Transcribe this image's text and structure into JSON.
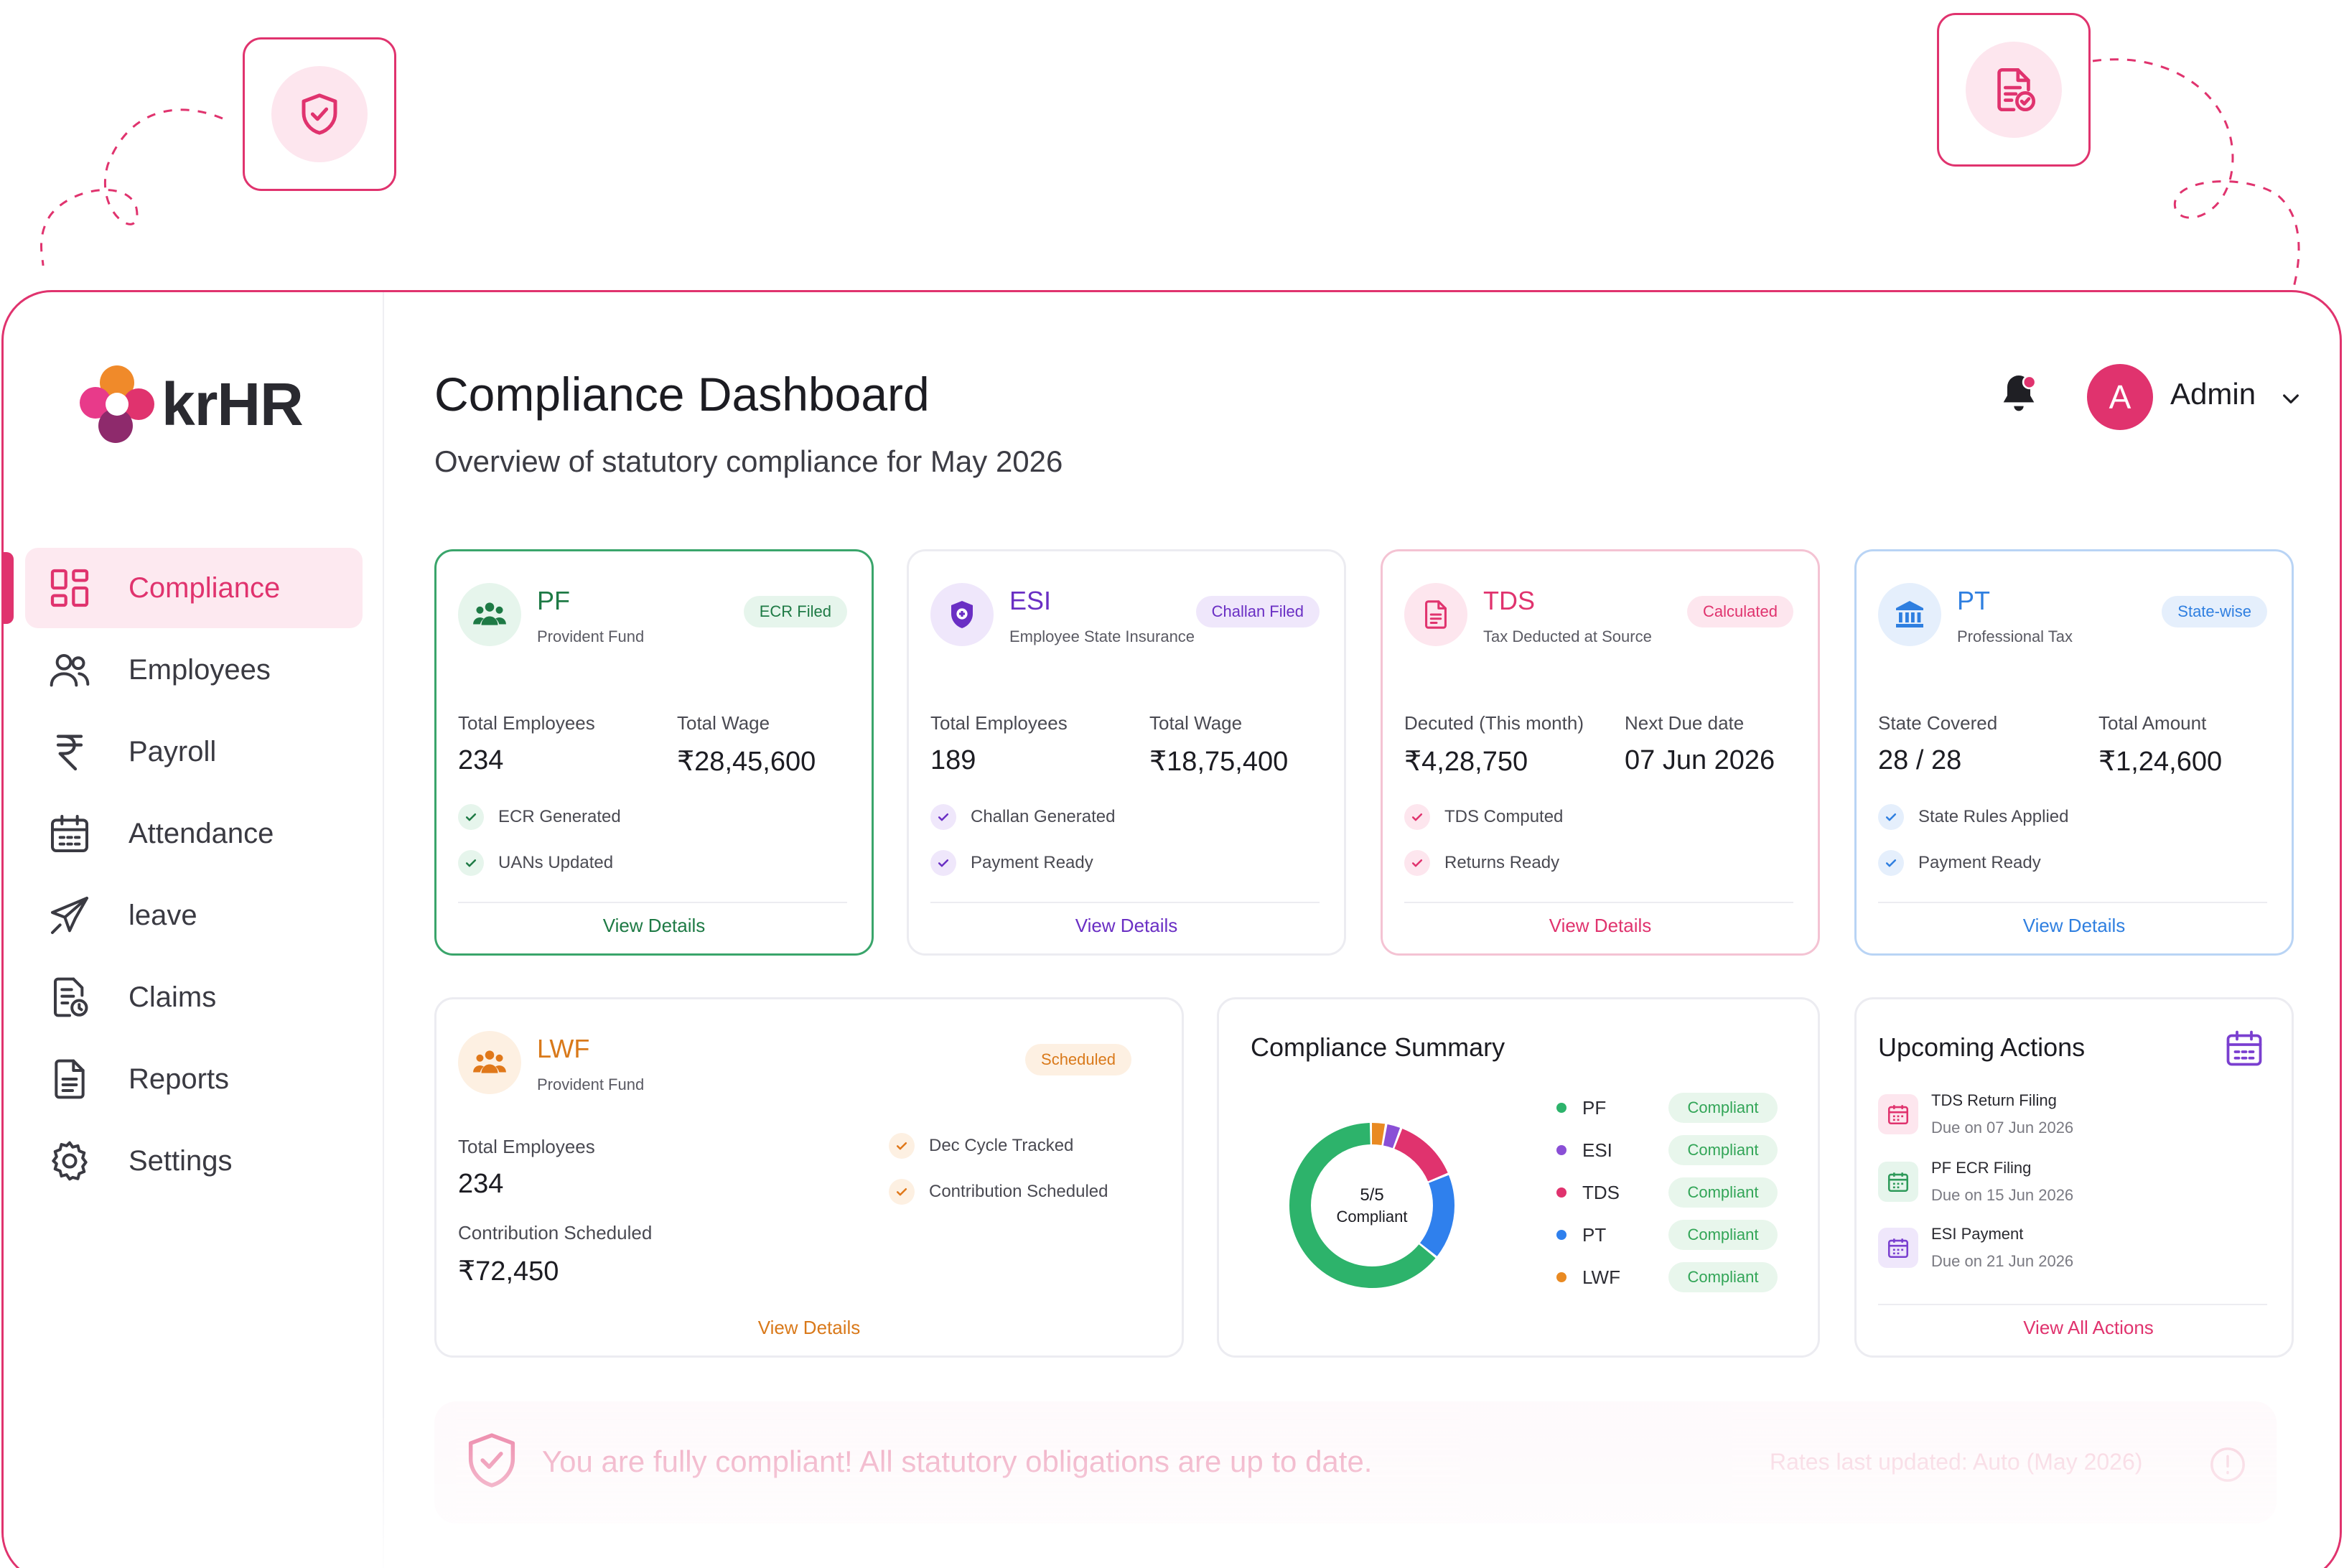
{
  "app": {
    "logo_text": "krHR"
  },
  "colors": {
    "accent": "#e0336e",
    "pf": "#2e9a5a",
    "esi": "#7a3fd0",
    "tds": "#e0336e",
    "pt": "#2f7fe0",
    "lwf": "#e58a1f"
  },
  "sidebar": {
    "items": [
      {
        "label": "Compliance",
        "icon": "grid-icon",
        "active": true
      },
      {
        "label": "Employees",
        "icon": "users-icon"
      },
      {
        "label": "Payroll",
        "icon": "rupee-icon"
      },
      {
        "label": "Attendance",
        "icon": "calendar-icon"
      },
      {
        "label": "leave",
        "icon": "plane-icon"
      },
      {
        "label": "Claims",
        "icon": "receipt-icon"
      },
      {
        "label": "Reports",
        "icon": "document-icon"
      },
      {
        "label": "Settings",
        "icon": "gear-icon"
      }
    ]
  },
  "header": {
    "title": "Compliance Dashboard",
    "subtitle": "Overview of statutory compliance for May 2026",
    "avatar_letter": "A",
    "user_name": "Admin"
  },
  "cards": {
    "pf": {
      "title": "PF",
      "subtitle": "Provident Fund",
      "badge": "ECR Filed",
      "stat1_label": "Total Employees",
      "stat1_value": "234",
      "stat2_label": "Total Wage",
      "stat2_value": "₹28,45,600",
      "check1": "ECR Generated",
      "check2": "UANs Updated",
      "link": "View Details"
    },
    "esi": {
      "title": "ESI",
      "subtitle": "Employee State Insurance",
      "badge": "Challan Filed",
      "stat1_label": "Total Employees",
      "stat1_value": "189",
      "stat2_label": "Total Wage",
      "stat2_value": "₹18,75,400",
      "check1": "Challan Generated",
      "check2": "Payment Ready",
      "link": "View Details"
    },
    "tds": {
      "title": "TDS",
      "subtitle": "Tax Deducted at Source",
      "badge": "Calculated",
      "stat1_label": "Decuted (This month)",
      "stat1_value": "₹4,28,750",
      "stat2_label": "Next Due date",
      "stat2_value": "07 Jun 2026",
      "check1": "TDS Computed",
      "check2": "Returns Ready",
      "link": "View Details"
    },
    "pt": {
      "title": "PT",
      "subtitle": "Professional Tax",
      "badge": "State-wise",
      "stat1_label": "State Covered",
      "stat1_value": "28 / 28",
      "stat2_label": "Total Amount",
      "stat2_value": "₹1,24,600",
      "check1": "State Rules Applied",
      "check2": "Payment Ready",
      "link": "View Details"
    },
    "lwf": {
      "title": "LWF",
      "subtitle": "Provident Fund",
      "badge": "Scheduled",
      "stat1_label": "Total Employees",
      "stat1_value": "234",
      "stat2_label": "Contribution Scheduled",
      "stat2_value": "₹72,450",
      "check1": "Dec Cycle Tracked",
      "check2": "Contribution Scheduled",
      "link": "View Details"
    }
  },
  "summary": {
    "title": "Compliance Summary",
    "center_value": "5/5",
    "center_label": "Compliant",
    "items": [
      {
        "name": "PF",
        "status": "Compliant",
        "color": "#2db36b"
      },
      {
        "name": "ESI",
        "status": "Compliant",
        "color": "#8a4fd6"
      },
      {
        "name": "TDS",
        "status": "Compliant",
        "color": "#e0336e"
      },
      {
        "name": "PT",
        "status": "Compliant",
        "color": "#2f80ed"
      },
      {
        "name": "LWF",
        "status": "Compliant",
        "color": "#e98a22"
      }
    ]
  },
  "upcoming": {
    "title": "Upcoming Actions",
    "items": [
      {
        "title": "TDS Return Filing",
        "due": "Due on 07 Jun 2026"
      },
      {
        "title": "PF ECR Filing",
        "due": "Due on 15 Jun 2026"
      },
      {
        "title": "ESI Payment",
        "due": "Due on 21 Jun 2026"
      }
    ],
    "link": "View All Actions"
  },
  "banner": {
    "message": "You are fully compliant! All statutory obligations are up to date.",
    "rates": "Rates last updated: Auto (May 2026)"
  }
}
